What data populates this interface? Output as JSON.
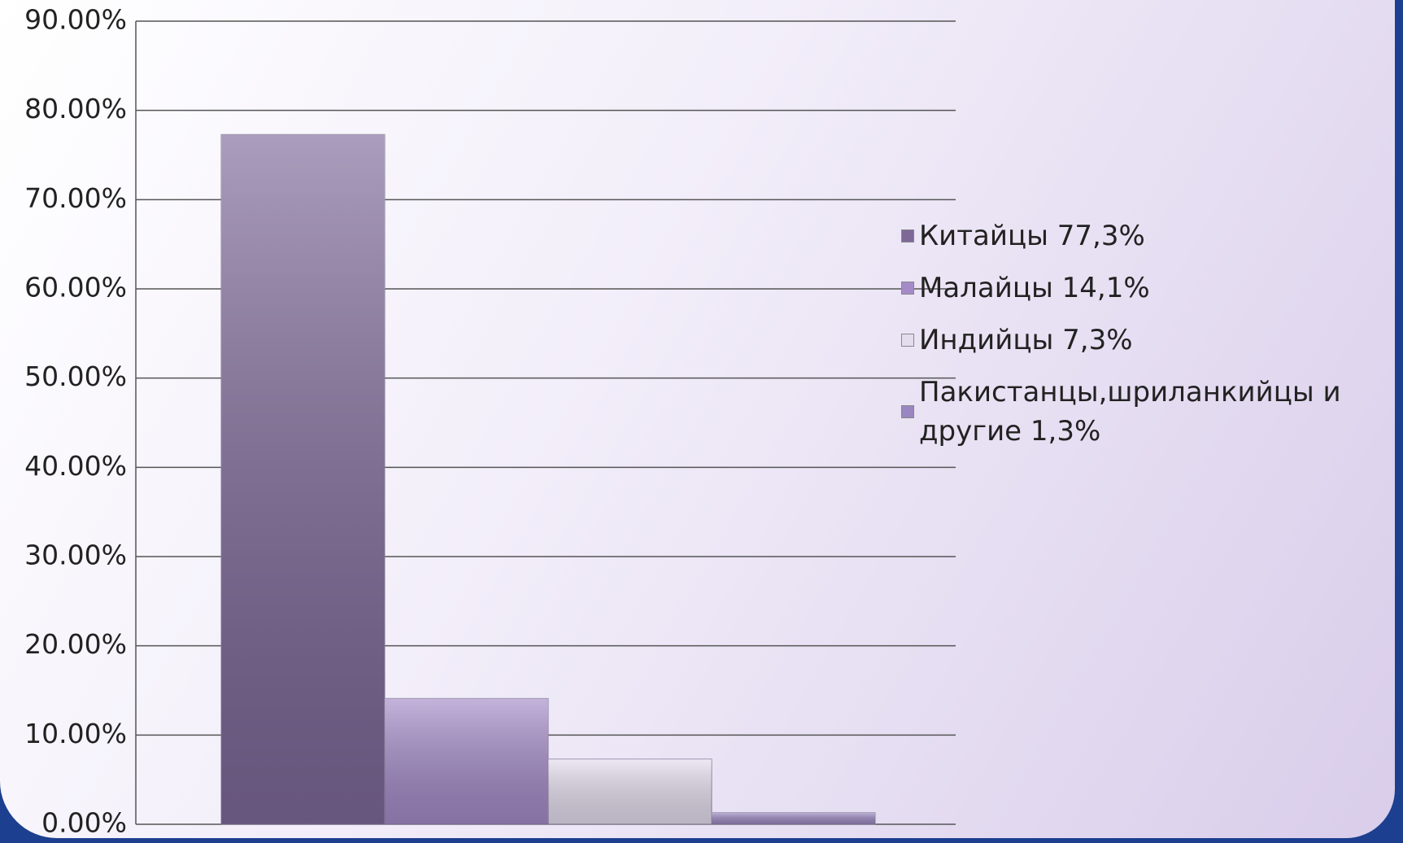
{
  "chart_data": {
    "type": "bar",
    "series": [
      {
        "name": "Китайцы 77,3%",
        "color": "#7d6898",
        "values": [
          77.3
        ]
      },
      {
        "name": "Малайцы 14,1%",
        "color": "#a48bc8",
        "values": [
          14.1
        ]
      },
      {
        "name": "Индийцы 7,3%",
        "color": "#e4ddee",
        "values": [
          7.3
        ]
      },
      {
        "name": "Пакистанцы,шриланкийцы и другие 1,3%",
        "color": "#9a86c0",
        "values": [
          1.3
        ]
      }
    ],
    "ylim": [
      0,
      90
    ],
    "yticks": [
      {
        "value": 0,
        "label": "0.00%"
      },
      {
        "value": 10,
        "label": "10.00%"
      },
      {
        "value": 20,
        "label": "20.00%"
      },
      {
        "value": 30,
        "label": "30.00%"
      },
      {
        "value": 40,
        "label": "40.00%"
      },
      {
        "value": 50,
        "label": "50.00%"
      },
      {
        "value": 60,
        "label": "60.00%"
      },
      {
        "value": 70,
        "label": "70.00%"
      },
      {
        "value": 80,
        "label": "80.00%"
      },
      {
        "value": 90,
        "label": "90.00%"
      }
    ],
    "grid": true,
    "legend": "right"
  }
}
